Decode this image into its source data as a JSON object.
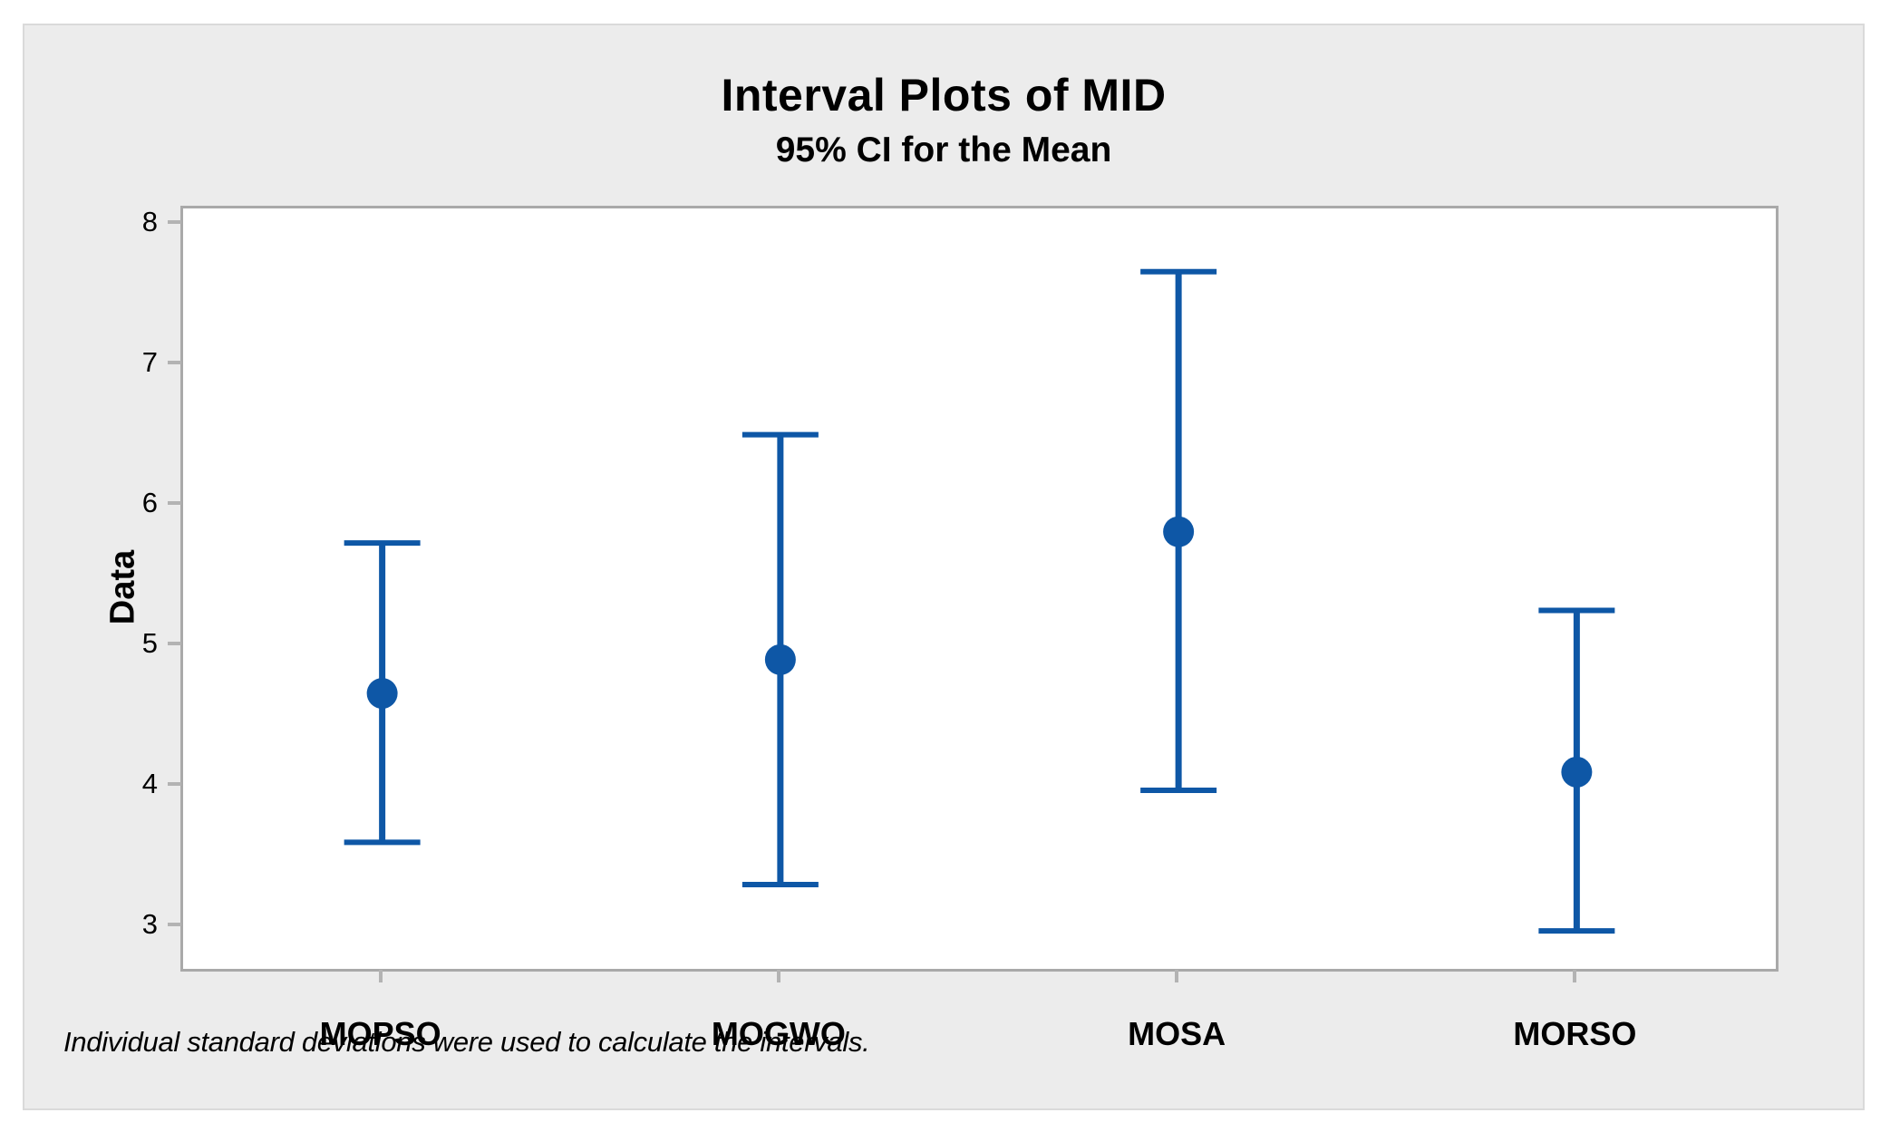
{
  "figure": {
    "background": "#ECECEC",
    "border_color": "#DADADA",
    "plot_background": "#FFFFFF",
    "axis_frame_color": "#A9A9A9",
    "tick_mark_color": "#B3B3B3",
    "text_color": "#000000"
  },
  "chart_data": {
    "type": "interval",
    "title": "Interval Plots of MID",
    "subtitle": "95% CI for the Mean",
    "ylabel": "Data",
    "xlabel": "",
    "footnote": "Individual standard deviations were used to calculate the intervals.",
    "categories": [
      "MOPSO",
      "MOGWO",
      "MOSA",
      "MORSO"
    ],
    "series": [
      {
        "name": "MID 95% CI for the Mean",
        "means": [
          4.66,
          4.9,
          5.81,
          4.1
        ],
        "ci_lower": [
          3.6,
          3.3,
          3.97,
          2.97
        ],
        "ci_upper": [
          5.73,
          6.5,
          7.66,
          5.25
        ]
      }
    ],
    "yticks": [
      8,
      7,
      6,
      5,
      4,
      3
    ],
    "ylim": [
      2.7,
      8.11
    ],
    "grid": false,
    "legend_position": "none",
    "marker": "circle",
    "interval_color": "#0E57A6"
  }
}
